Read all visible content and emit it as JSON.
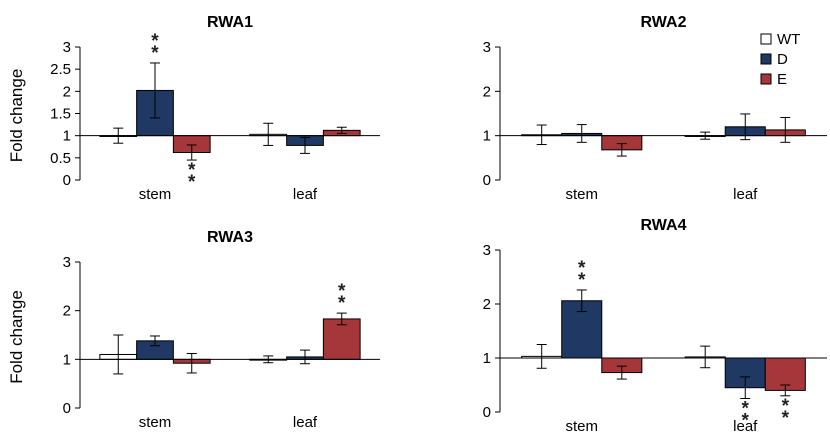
{
  "chart_data": [
    {
      "type": "bar",
      "title": "RWA1",
      "ylabel": "Fold change",
      "ylim": [
        0,
        3
      ],
      "yticks": [
        "0",
        "0.5",
        "1",
        "1.5",
        "2",
        "2.5",
        "3"
      ],
      "categories": [
        "stem",
        "leaf"
      ],
      "series": [
        {
          "name": "WT",
          "values": [
            1.0,
            1.03
          ],
          "errors": [
            0.17,
            0.25
          ]
        },
        {
          "name": "D",
          "values": [
            2.02,
            0.78
          ],
          "errors": [
            0.62,
            0.18
          ]
        },
        {
          "name": "E",
          "values": [
            0.62,
            1.12
          ],
          "errors": [
            0.17,
            0.07
          ]
        }
      ],
      "annotations": [
        {
          "category": "stem",
          "series": "D",
          "position": "above",
          "text": "**"
        },
        {
          "category": "stem",
          "series": "E",
          "position": "below",
          "text": "**"
        }
      ]
    },
    {
      "type": "bar",
      "title": "RWA2",
      "ylabel": "",
      "ylim": [
        0,
        3
      ],
      "yticks": [
        "0",
        "1",
        "2",
        "3"
      ],
      "categories": [
        "stem",
        "leaf"
      ],
      "series": [
        {
          "name": "WT",
          "values": [
            1.02,
            1.0
          ],
          "errors": [
            0.22,
            0.08
          ]
        },
        {
          "name": "D",
          "values": [
            1.05,
            1.2
          ],
          "errors": [
            0.2,
            0.29
          ]
        },
        {
          "name": "E",
          "values": [
            0.68,
            1.13
          ],
          "errors": [
            0.14,
            0.28
          ]
        }
      ],
      "annotations": []
    },
    {
      "type": "bar",
      "title": "RWA3",
      "ylabel": "Fold change",
      "ylim": [
        0,
        3
      ],
      "yticks": [
        "0",
        "1",
        "2",
        "3"
      ],
      "categories": [
        "stem",
        "leaf"
      ],
      "series": [
        {
          "name": "WT",
          "values": [
            1.1,
            1.0
          ],
          "errors": [
            0.4,
            0.07
          ]
        },
        {
          "name": "D",
          "values": [
            1.38,
            1.05
          ],
          "errors": [
            0.1,
            0.14
          ]
        },
        {
          "name": "E",
          "values": [
            0.92,
            1.83
          ],
          "errors": [
            0.2,
            0.12
          ]
        }
      ],
      "annotations": [
        {
          "category": "leaf",
          "series": "E",
          "position": "above",
          "text": "**"
        }
      ]
    },
    {
      "type": "bar",
      "title": "RWA4",
      "ylabel": "",
      "ylim": [
        0,
        3
      ],
      "yticks": [
        "0",
        "1",
        "2",
        "3"
      ],
      "categories": [
        "stem",
        "leaf"
      ],
      "series": [
        {
          "name": "WT",
          "values": [
            1.03,
            1.02
          ],
          "errors": [
            0.22,
            0.2
          ]
        },
        {
          "name": "D",
          "values": [
            2.06,
            0.45
          ],
          "errors": [
            0.2,
            0.2
          ]
        },
        {
          "name": "E",
          "values": [
            0.73,
            0.4
          ],
          "errors": [
            0.12,
            0.1
          ]
        }
      ],
      "annotations": [
        {
          "category": "stem",
          "series": "D",
          "position": "above",
          "text": "**"
        },
        {
          "category": "leaf",
          "series": "D",
          "position": "below",
          "text": "**"
        },
        {
          "category": "leaf",
          "series": "E",
          "position": "below",
          "text": "**"
        }
      ]
    }
  ],
  "legend": {
    "placement": "top-right",
    "entries": [
      {
        "name": "WT",
        "color": "#ffffff"
      },
      {
        "name": "D",
        "color": "#1f3864"
      },
      {
        "name": "E",
        "color": "#a5363a"
      }
    ]
  }
}
